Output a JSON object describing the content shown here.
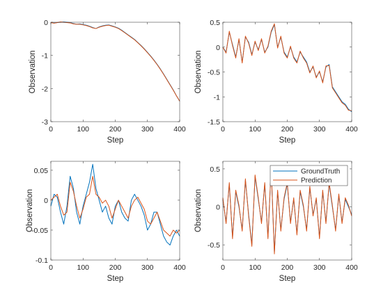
{
  "chart_data": [
    {
      "type": "line",
      "xlabel": "Step",
      "ylabel": "Observation",
      "xlim": [
        0,
        400
      ],
      "ylim": [
        -3,
        0
      ],
      "xticks": [
        "0",
        "100",
        "200",
        "300",
        "400"
      ],
      "yticks": [
        "-3",
        "-2",
        "-1",
        "0"
      ],
      "legend": false,
      "series": [
        {
          "color": "#0072BD",
          "x": [
            0,
            10,
            20,
            30,
            40,
            50,
            60,
            70,
            80,
            90,
            100,
            110,
            120,
            130,
            140,
            150,
            160,
            170,
            180,
            190,
            200,
            210,
            220,
            230,
            240,
            250,
            260,
            270,
            280,
            290,
            300,
            310,
            320,
            330,
            340,
            350,
            360,
            370,
            380,
            390,
            400
          ],
          "y": [
            -0.01,
            -0.02,
            -0.01,
            0.0,
            0.01,
            0.0,
            -0.01,
            -0.04,
            -0.06,
            -0.05,
            -0.07,
            -0.09,
            -0.12,
            -0.16,
            -0.19,
            -0.14,
            -0.11,
            -0.09,
            -0.08,
            -0.11,
            -0.14,
            -0.18,
            -0.24,
            -0.31,
            -0.38,
            -0.45,
            -0.52,
            -0.61,
            -0.7,
            -0.8,
            -0.91,
            -1.02,
            -1.14,
            -1.27,
            -1.41,
            -1.56,
            -1.72,
            -1.88,
            -2.04,
            -2.22,
            -2.38
          ]
        },
        {
          "color": "#D95319",
          "x": [
            0,
            10,
            20,
            30,
            40,
            50,
            60,
            70,
            80,
            90,
            100,
            110,
            120,
            130,
            140,
            150,
            160,
            170,
            180,
            190,
            200,
            210,
            220,
            230,
            240,
            250,
            260,
            270,
            280,
            290,
            300,
            310,
            320,
            330,
            340,
            350,
            360,
            370,
            380,
            390,
            400
          ],
          "y": [
            -0.01,
            -0.03,
            -0.01,
            0.01,
            0.0,
            -0.01,
            -0.02,
            -0.05,
            -0.06,
            -0.06,
            -0.08,
            -0.1,
            -0.13,
            -0.17,
            -0.19,
            -0.15,
            -0.12,
            -0.1,
            -0.09,
            -0.12,
            -0.15,
            -0.19,
            -0.25,
            -0.32,
            -0.39,
            -0.46,
            -0.53,
            -0.62,
            -0.71,
            -0.81,
            -0.92,
            -1.03,
            -1.15,
            -1.28,
            -1.42,
            -1.57,
            -1.73,
            -1.89,
            -2.05,
            -2.22,
            -2.38
          ]
        }
      ]
    },
    {
      "type": "line",
      "xlabel": "Step",
      "ylabel": "Observation",
      "xlim": [
        0,
        400
      ],
      "ylim": [
        -1.5,
        0.5
      ],
      "xticks": [
        "0",
        "100",
        "200",
        "300",
        "400"
      ],
      "yticks": [
        "-1.5",
        "-1",
        "-0.5",
        "0",
        "0.5"
      ],
      "legend": false,
      "series": [
        {
          "color": "#0072BD",
          "x": [
            0,
            10,
            20,
            30,
            40,
            50,
            60,
            70,
            80,
            90,
            100,
            110,
            120,
            130,
            140,
            150,
            160,
            170,
            180,
            190,
            200,
            210,
            220,
            230,
            240,
            250,
            260,
            270,
            280,
            290,
            300,
            310,
            320,
            330,
            340,
            350,
            360,
            370,
            380,
            390,
            400
          ],
          "y": [
            0.0,
            -0.1,
            0.3,
            0.05,
            -0.2,
            0.15,
            -0.3,
            0.2,
            0.1,
            -0.15,
            0.1,
            -0.05,
            0.15,
            -0.1,
            0.0,
            0.3,
            0.45,
            0.0,
            0.2,
            -0.1,
            -0.2,
            0.0,
            -0.2,
            -0.3,
            -0.1,
            -0.2,
            -0.3,
            -0.5,
            -0.4,
            -0.6,
            -0.5,
            -0.7,
            -0.4,
            -0.35,
            -0.8,
            -0.9,
            -1.0,
            -1.1,
            -1.15,
            -1.25,
            -1.3
          ]
        },
        {
          "color": "#D95319",
          "x": [
            0,
            10,
            20,
            30,
            40,
            50,
            60,
            70,
            80,
            90,
            100,
            110,
            120,
            130,
            140,
            150,
            160,
            170,
            180,
            190,
            200,
            210,
            220,
            230,
            240,
            250,
            260,
            270,
            280,
            290,
            300,
            310,
            320,
            330,
            340,
            350,
            360,
            370,
            380,
            390,
            400
          ],
          "y": [
            0.0,
            -0.12,
            0.32,
            0.03,
            -0.22,
            0.17,
            -0.32,
            0.22,
            0.08,
            -0.17,
            0.12,
            -0.07,
            0.17,
            -0.12,
            0.02,
            0.32,
            0.47,
            -0.02,
            0.22,
            -0.12,
            -0.22,
            0.02,
            -0.22,
            -0.32,
            -0.08,
            -0.22,
            -0.32,
            -0.52,
            -0.38,
            -0.62,
            -0.48,
            -0.72,
            -0.38,
            -0.37,
            -0.82,
            -0.92,
            -1.02,
            -1.12,
            -1.17,
            -1.27,
            -1.28
          ]
        }
      ]
    },
    {
      "type": "line",
      "xlabel": "Step",
      "ylabel": "Observation",
      "xlim": [
        0,
        400
      ],
      "ylim": [
        -0.1,
        0.065
      ],
      "xticks": [
        "0",
        "100",
        "200",
        "300",
        "400"
      ],
      "yticks": [
        "-0.1",
        "-0.05",
        "0",
        "0.05"
      ],
      "legend": false,
      "series": [
        {
          "color": "#0072BD",
          "x": [
            0,
            10,
            20,
            30,
            40,
            50,
            60,
            70,
            80,
            90,
            100,
            110,
            120,
            130,
            140,
            150,
            160,
            170,
            180,
            190,
            200,
            210,
            220,
            230,
            240,
            250,
            260,
            270,
            280,
            290,
            300,
            310,
            320,
            330,
            340,
            350,
            360,
            370,
            380,
            390,
            400
          ],
          "y": [
            -0.01,
            0.01,
            0.005,
            -0.02,
            -0.04,
            -0.01,
            0.04,
            0.02,
            -0.02,
            -0.04,
            -0.01,
            0.01,
            0.03,
            0.06,
            0.02,
            0.0,
            -0.02,
            -0.01,
            -0.03,
            -0.04,
            -0.01,
            0.0,
            -0.02,
            -0.03,
            -0.035,
            0.0,
            0.01,
            0.0,
            -0.01,
            -0.025,
            -0.05,
            -0.04,
            -0.02,
            -0.02,
            -0.04,
            -0.06,
            -0.07,
            -0.075,
            -0.06,
            -0.05,
            -0.06
          ]
        },
        {
          "color": "#D95319",
          "x": [
            0,
            10,
            20,
            30,
            40,
            50,
            60,
            70,
            80,
            90,
            100,
            110,
            120,
            130,
            140,
            150,
            160,
            170,
            180,
            190,
            200,
            210,
            220,
            230,
            240,
            250,
            260,
            270,
            280,
            290,
            300,
            310,
            320,
            330,
            340,
            350,
            360,
            370,
            380,
            390,
            400
          ],
          "y": [
            0.0,
            0.005,
            0.01,
            -0.01,
            -0.025,
            -0.02,
            0.03,
            0.015,
            -0.01,
            -0.03,
            -0.015,
            0.005,
            0.01,
            0.04,
            0.01,
            0.005,
            -0.005,
            0.0,
            -0.01,
            -0.03,
            -0.015,
            0.0,
            -0.01,
            -0.02,
            -0.03,
            -0.01,
            0.0,
            0.005,
            -0.005,
            -0.015,
            -0.035,
            -0.04,
            -0.03,
            -0.02,
            -0.035,
            -0.05,
            -0.055,
            -0.06,
            -0.05,
            -0.055,
            -0.05
          ]
        }
      ]
    },
    {
      "type": "line",
      "xlabel": "Step",
      "ylabel": "Observation",
      "xlim": [
        0,
        400
      ],
      "ylim": [
        -0.7,
        0.6
      ],
      "xticks": [
        "0",
        "100",
        "200",
        "300",
        "400"
      ],
      "yticks": [
        "-0.5",
        "0",
        "0.5"
      ],
      "legend": true,
      "legend_position": "top-right",
      "series": [
        {
          "name": "GroundTruth",
          "color": "#0072BD",
          "x": [
            0,
            10,
            20,
            30,
            40,
            50,
            60,
            70,
            80,
            90,
            100,
            110,
            120,
            130,
            140,
            150,
            160,
            170,
            180,
            190,
            200,
            210,
            220,
            230,
            240,
            250,
            260,
            270,
            280,
            290,
            300,
            310,
            320,
            330,
            340,
            350,
            360,
            370,
            380,
            390,
            400
          ],
          "y": [
            0.1,
            -0.2,
            0.3,
            -0.4,
            0.2,
            0.0,
            -0.3,
            0.35,
            -0.1,
            -0.5,
            0.4,
            0.1,
            -0.2,
            0.3,
            -0.4,
            0.5,
            -0.6,
            0.2,
            -0.3,
            0.1,
            0.3,
            -0.2,
            0.1,
            -0.35,
            0.2,
            0.0,
            -0.3,
            0.25,
            -0.1,
            0.1,
            -0.4,
            0.2,
            -0.2,
            0.3,
            0.0,
            -0.3,
            0.15,
            -0.2,
            0.1,
            0.0,
            -0.1
          ]
        },
        {
          "name": "Prediction",
          "color": "#D95319",
          "x": [
            0,
            10,
            20,
            30,
            40,
            50,
            60,
            70,
            80,
            90,
            100,
            110,
            120,
            130,
            140,
            150,
            160,
            170,
            180,
            190,
            200,
            210,
            220,
            230,
            240,
            250,
            260,
            270,
            280,
            290,
            300,
            310,
            320,
            330,
            340,
            350,
            360,
            370,
            380,
            390,
            400
          ],
          "y": [
            0.12,
            -0.22,
            0.32,
            -0.42,
            0.22,
            0.02,
            -0.32,
            0.37,
            -0.12,
            -0.52,
            0.42,
            0.12,
            -0.22,
            0.32,
            -0.42,
            0.52,
            -0.62,
            0.22,
            -0.32,
            0.12,
            0.32,
            -0.22,
            0.12,
            -0.37,
            0.22,
            0.02,
            -0.32,
            0.27,
            -0.12,
            0.12,
            -0.42,
            0.22,
            -0.22,
            0.32,
            0.02,
            -0.32,
            0.17,
            -0.22,
            0.12,
            0.02,
            -0.12
          ]
        }
      ]
    }
  ]
}
